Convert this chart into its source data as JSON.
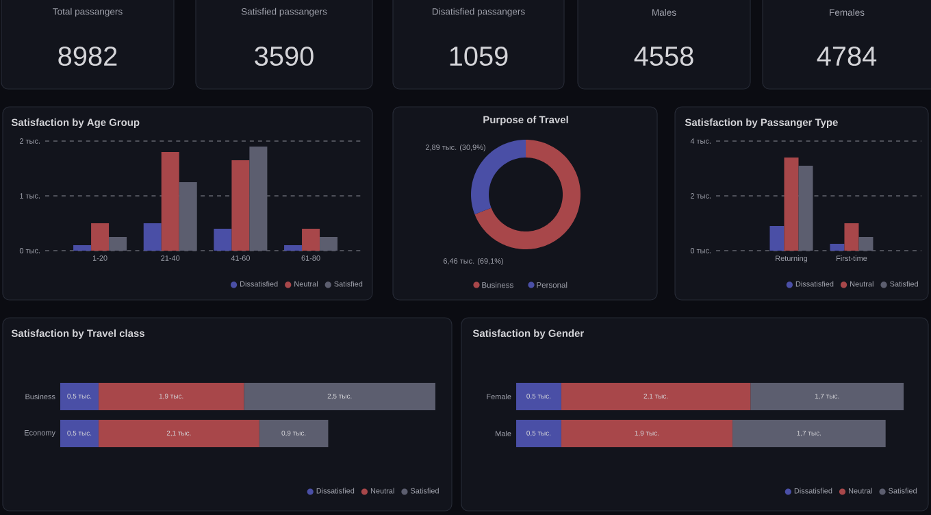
{
  "chart_data": [
    {
      "type": "other",
      "title": "Total passangers",
      "annotations": [
        "8982"
      ]
    },
    {
      "type": "other",
      "title": "Satisfied passangers",
      "annotations": [
        "3590"
      ]
    },
    {
      "type": "other",
      "title": "Disatisfied passangers",
      "annotations": [
        "1059"
      ]
    },
    {
      "type": "other",
      "title": "Males",
      "annotations": [
        "4558"
      ]
    },
    {
      "type": "other",
      "title": "Females",
      "annotations": [
        "4784"
      ]
    },
    {
      "type": "bar",
      "title": "Satisfaction by Age Group",
      "categories": [
        "1-20",
        "21-40",
        "41-60",
        "61-80"
      ],
      "series": [
        {
          "name": "Dissatisfied",
          "color": "#4a4fa6",
          "values": [
            0.1,
            0.5,
            0.4,
            0.1
          ]
        },
        {
          "name": "Neutral",
          "color": "#a8474a",
          "values": [
            0.5,
            1.8,
            1.65,
            0.4
          ]
        },
        {
          "name": "Satisfied",
          "color": "#5c5e6f",
          "values": [
            0.25,
            1.25,
            1.9,
            0.25
          ]
        }
      ],
      "ylim": [
        0,
        2
      ],
      "yticks": [
        {
          "value": 0,
          "label": "0 тыс."
        },
        {
          "value": 1,
          "label": "1 тыс."
        },
        {
          "value": 2,
          "label": "2 тыс."
        }
      ],
      "grid": "y",
      "legend": "bottom right"
    },
    {
      "type": "donut",
      "title": "Purpose of Travel",
      "categories": [
        "Business",
        "Personal"
      ],
      "values": [
        6.46,
        2.89
      ],
      "colors": [
        "#a8474a",
        "#4a4fa6"
      ],
      "value_labels": [
        "6,46 тыс. (69,1%)",
        "2,89 тыс. (30,9%)"
      ],
      "legend": "bottom"
    },
    {
      "type": "bar",
      "title": "Satisfaction by Passanger Type",
      "categories": [
        "Returning",
        "First-time"
      ],
      "series": [
        {
          "name": "Dissatisfied",
          "color": "#4a4fa6",
          "values": [
            0.9,
            0.25
          ]
        },
        {
          "name": "Neutral",
          "color": "#a8474a",
          "values": [
            3.4,
            1
          ]
        },
        {
          "name": "Satisfied",
          "color": "#5c5e6f",
          "values": [
            3.1,
            0.5
          ]
        }
      ],
      "ylim": [
        0,
        4
      ],
      "yticks": [
        {
          "value": 0,
          "label": "0 тыс."
        },
        {
          "value": 2,
          "label": "2 тыс."
        },
        {
          "value": 4,
          "label": "4 тыс."
        }
      ],
      "grid": "y",
      "legend": "bottom right"
    },
    {
      "type": "bar",
      "orientation": "horizontal",
      "stacked": true,
      "title": "Satisfaction by Travel class",
      "categories": [
        "Business",
        "Economy"
      ],
      "series": [
        {
          "name": "Dissatisfied",
          "color": "#4a4fa6",
          "values": [
            0.5,
            0.5
          ],
          "value_labels": [
            "0,5 тыс.",
            "0,5 тыс."
          ]
        },
        {
          "name": "Neutral",
          "color": "#a8474a",
          "values": [
            1.9,
            2.1
          ],
          "value_labels": [
            "1,9 тыс.",
            "2,1 тыс."
          ]
        },
        {
          "name": "Satisfied",
          "color": "#5c5e6f",
          "values": [
            2.5,
            0.9
          ],
          "value_labels": [
            "2,5 тыс.",
            "0,9 тыс."
          ]
        }
      ],
      "legend": "bottom right"
    },
    {
      "type": "bar",
      "orientation": "horizontal",
      "stacked": true,
      "title": "Satisfaction by Gender",
      "categories": [
        "Female",
        "Male"
      ],
      "series": [
        {
          "name": "Dissatisfied",
          "color": "#4a4fa6",
          "values": [
            0.5,
            0.5
          ],
          "value_labels": [
            "0,5 тыс.",
            "0,5 тыс."
          ]
        },
        {
          "name": "Neutral",
          "color": "#a8474a",
          "values": [
            2.1,
            1.9
          ],
          "value_labels": [
            "2,1 тыс.",
            "1,9 тыс."
          ]
        },
        {
          "name": "Satisfied",
          "color": "#5c5e6f",
          "values": [
            1.7,
            1.7
          ],
          "value_labels": [
            "1,7 тыс.",
            "1,7 тыс."
          ]
        }
      ],
      "legend": "bottom right"
    }
  ]
}
